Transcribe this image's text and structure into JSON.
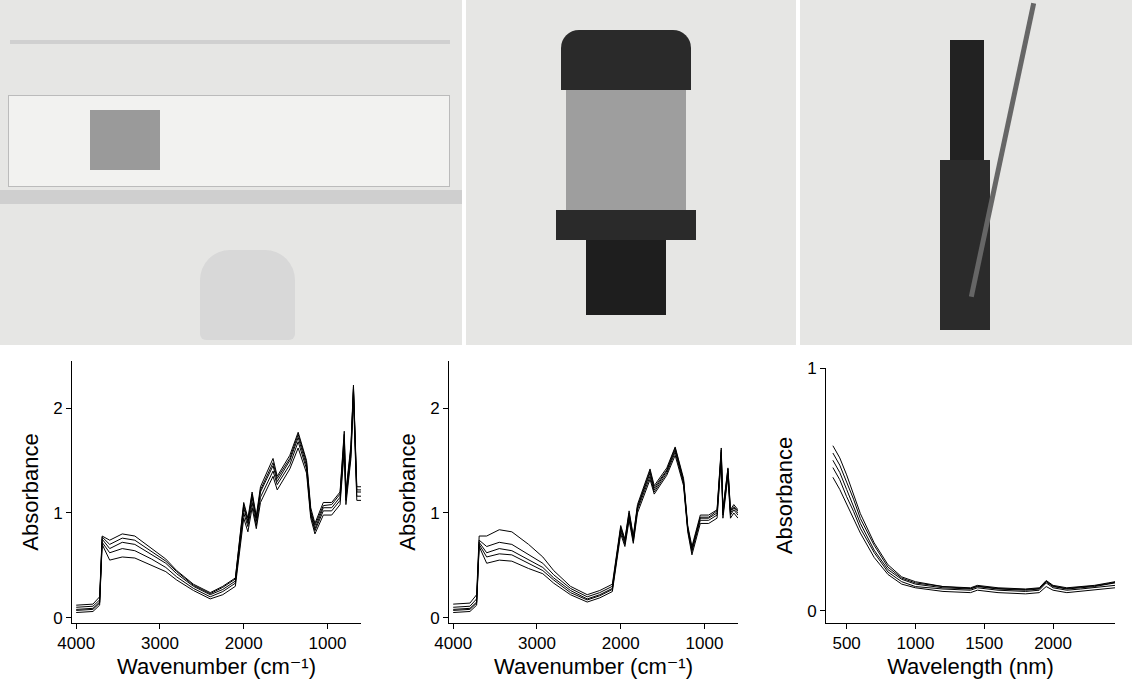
{
  "chart_data": [
    {
      "type": "line",
      "x_label": "Wavenumber (cm⁻¹)",
      "y_label": "Absorbance",
      "grid": false,
      "xlim": [
        4050,
        600
      ],
      "xticks": [
        4000,
        3000,
        2000,
        1000
      ],
      "ylim": [
        -0.05,
        2.45
      ],
      "yticks": [
        0,
        1,
        2
      ],
      "x": [
        4000,
        3800,
        3720,
        3690,
        3600,
        3450,
        3300,
        3100,
        2930,
        2800,
        2600,
        2400,
        2250,
        2100,
        2000,
        1950,
        1900,
        1850,
        1800,
        1650,
        1600,
        1450,
        1350,
        1250,
        1200,
        1150,
        1050,
        950,
        850,
        800,
        780,
        720,
        690,
        650,
        600
      ],
      "series": [
        {
          "color": "#000000",
          "values": [
            0.08,
            0.09,
            0.15,
            0.75,
            0.66,
            0.72,
            0.7,
            0.6,
            0.52,
            0.42,
            0.3,
            0.22,
            0.27,
            0.35,
            1.05,
            0.9,
            1.15,
            0.92,
            1.2,
            1.45,
            1.3,
            1.5,
            1.72,
            1.45,
            1.0,
            0.85,
            1.05,
            1.05,
            1.15,
            1.7,
            1.15,
            1.6,
            2.2,
            1.2,
            1.2
          ]
        },
        {
          "color": "#000000",
          "values": [
            0.12,
            0.13,
            0.2,
            0.78,
            0.74,
            0.8,
            0.78,
            0.66,
            0.56,
            0.45,
            0.32,
            0.24,
            0.3,
            0.38,
            1.1,
            0.95,
            1.2,
            0.97,
            1.25,
            1.52,
            1.35,
            1.55,
            1.77,
            1.5,
            1.05,
            0.9,
            1.1,
            1.1,
            1.2,
            1.78,
            1.2,
            1.65,
            2.22,
            1.25,
            1.25
          ]
        },
        {
          "color": "#000000",
          "values": [
            0.05,
            0.06,
            0.12,
            0.7,
            0.55,
            0.58,
            0.57,
            0.5,
            0.44,
            0.36,
            0.26,
            0.18,
            0.22,
            0.3,
            0.95,
            0.82,
            1.05,
            0.85,
            1.1,
            1.35,
            1.22,
            1.42,
            1.62,
            1.38,
            0.95,
            0.8,
            0.98,
            0.98,
            1.08,
            1.6,
            1.08,
            1.52,
            2.1,
            1.12,
            1.12
          ]
        },
        {
          "color": "#000000",
          "values": [
            0.1,
            0.11,
            0.17,
            0.77,
            0.7,
            0.76,
            0.74,
            0.63,
            0.54,
            0.44,
            0.31,
            0.23,
            0.29,
            0.37,
            1.08,
            0.92,
            1.18,
            0.95,
            1.22,
            1.48,
            1.33,
            1.52,
            1.75,
            1.48,
            1.02,
            0.88,
            1.07,
            1.08,
            1.18,
            1.75,
            1.18,
            1.62,
            2.18,
            1.22,
            1.22
          ]
        },
        {
          "color": "#000000",
          "values": [
            0.07,
            0.08,
            0.14,
            0.72,
            0.62,
            0.66,
            0.64,
            0.56,
            0.48,
            0.39,
            0.28,
            0.2,
            0.25,
            0.33,
            1.0,
            0.87,
            1.1,
            0.88,
            1.15,
            1.4,
            1.27,
            1.46,
            1.68,
            1.42,
            0.98,
            0.83,
            1.02,
            1.02,
            1.12,
            1.65,
            1.12,
            1.56,
            2.15,
            1.16,
            1.16
          ]
        }
      ]
    },
    {
      "type": "line",
      "x_label": "Wavenumber (cm⁻¹)",
      "y_label": "Absorbance",
      "grid": false,
      "xlim": [
        4050,
        600
      ],
      "xticks": [
        4000,
        3000,
        2000,
        1000
      ],
      "ylim": [
        -0.05,
        2.45
      ],
      "yticks": [
        0,
        1,
        2
      ],
      "x": [
        4000,
        3800,
        3720,
        3690,
        3600,
        3450,
        3300,
        3100,
        2930,
        2800,
        2600,
        2400,
        2250,
        2100,
        2000,
        1950,
        1900,
        1850,
        1800,
        1650,
        1600,
        1450,
        1350,
        1250,
        1200,
        1150,
        1050,
        950,
        850,
        800,
        780,
        720,
        690,
        650,
        600
      ],
      "series": [
        {
          "color": "#000000",
          "values": [
            0.08,
            0.09,
            0.15,
            0.72,
            0.62,
            0.66,
            0.64,
            0.55,
            0.48,
            0.38,
            0.26,
            0.18,
            0.22,
            0.28,
            0.85,
            0.72,
            0.98,
            0.75,
            1.05,
            1.38,
            1.22,
            1.4,
            1.6,
            1.3,
            0.85,
            0.65,
            0.95,
            0.95,
            1.0,
            1.58,
            1.0,
            1.4,
            1.0,
            1.05,
            1.0
          ]
        },
        {
          "color": "#000000",
          "values": [
            0.13,
            0.14,
            0.22,
            0.78,
            0.78,
            0.84,
            0.82,
            0.7,
            0.58,
            0.45,
            0.3,
            0.22,
            0.26,
            0.32,
            0.88,
            0.75,
            1.02,
            0.78,
            1.08,
            1.42,
            1.26,
            1.43,
            1.63,
            1.33,
            0.88,
            0.68,
            0.98,
            0.98,
            1.03,
            1.62,
            1.03,
            1.43,
            1.03,
            1.08,
            1.03
          ]
        },
        {
          "color": "#000000",
          "values": [
            0.05,
            0.06,
            0.12,
            0.68,
            0.52,
            0.55,
            0.54,
            0.47,
            0.42,
            0.33,
            0.22,
            0.15,
            0.19,
            0.25,
            0.8,
            0.68,
            0.93,
            0.71,
            1.0,
            1.32,
            1.18,
            1.36,
            1.55,
            1.26,
            0.82,
            0.6,
            0.9,
            0.9,
            0.95,
            1.52,
            0.95,
            1.35,
            0.95,
            1.0,
            0.95
          ]
        },
        {
          "color": "#000000",
          "values": [
            0.1,
            0.11,
            0.18,
            0.74,
            0.68,
            0.72,
            0.7,
            0.6,
            0.52,
            0.41,
            0.28,
            0.2,
            0.24,
            0.3,
            0.86,
            0.74,
            1.0,
            0.77,
            1.06,
            1.4,
            1.24,
            1.41,
            1.62,
            1.31,
            0.86,
            0.66,
            0.96,
            0.96,
            1.02,
            1.6,
            1.02,
            1.42,
            1.02,
            1.06,
            1.02
          ]
        },
        {
          "color": "#000000",
          "values": [
            0.07,
            0.08,
            0.14,
            0.7,
            0.58,
            0.61,
            0.6,
            0.52,
            0.45,
            0.36,
            0.24,
            0.17,
            0.21,
            0.27,
            0.83,
            0.7,
            0.96,
            0.73,
            1.03,
            1.35,
            1.2,
            1.38,
            1.58,
            1.28,
            0.84,
            0.63,
            0.93,
            0.93,
            0.98,
            1.55,
            0.98,
            1.38,
            0.98,
            1.03,
            0.98
          ]
        }
      ]
    },
    {
      "type": "line",
      "x_label": "Wavelength (nm)",
      "y_label": "Absorbance",
      "grid": false,
      "xlim": [
        350,
        2450
      ],
      "xticks": [
        500,
        1000,
        1500,
        2000
      ],
      "ylim": [
        -0.05,
        1
      ],
      "yticks": [
        0,
        1
      ],
      "x": [
        400,
        450,
        500,
        550,
        600,
        700,
        800,
        900,
        1000,
        1200,
        1400,
        1450,
        1600,
        1800,
        1900,
        1950,
        2000,
        2100,
        2200,
        2300,
        2400,
        2450
      ],
      "series": [
        {
          "color": "#000000",
          "values": [
            0.62,
            0.57,
            0.5,
            0.43,
            0.36,
            0.25,
            0.17,
            0.13,
            0.11,
            0.095,
            0.09,
            0.1,
            0.09,
            0.085,
            0.09,
            0.12,
            0.1,
            0.09,
            0.095,
            0.1,
            0.11,
            0.115
          ]
        },
        {
          "color": "#000000",
          "values": [
            0.68,
            0.63,
            0.56,
            0.48,
            0.4,
            0.28,
            0.19,
            0.14,
            0.12,
            0.1,
            0.095,
            0.105,
            0.095,
            0.09,
            0.095,
            0.125,
            0.105,
            0.095,
            0.1,
            0.105,
            0.115,
            0.12
          ]
        },
        {
          "color": "#000000",
          "values": [
            0.55,
            0.5,
            0.44,
            0.38,
            0.32,
            0.22,
            0.15,
            0.11,
            0.095,
            0.08,
            0.075,
            0.085,
            0.075,
            0.07,
            0.075,
            0.1,
            0.085,
            0.075,
            0.08,
            0.085,
            0.09,
            0.095
          ]
        },
        {
          "color": "#000000",
          "values": [
            0.65,
            0.6,
            0.53,
            0.46,
            0.38,
            0.27,
            0.18,
            0.135,
            0.115,
            0.1,
            0.092,
            0.102,
            0.092,
            0.088,
            0.092,
            0.122,
            0.102,
            0.092,
            0.098,
            0.103,
            0.112,
            0.118
          ]
        },
        {
          "color": "#000000",
          "values": [
            0.59,
            0.54,
            0.47,
            0.41,
            0.34,
            0.24,
            0.16,
            0.12,
            0.1,
            0.09,
            0.085,
            0.095,
            0.085,
            0.08,
            0.085,
            0.115,
            0.095,
            0.085,
            0.09,
            0.095,
            0.1,
            0.105
          ]
        }
      ]
    }
  ]
}
